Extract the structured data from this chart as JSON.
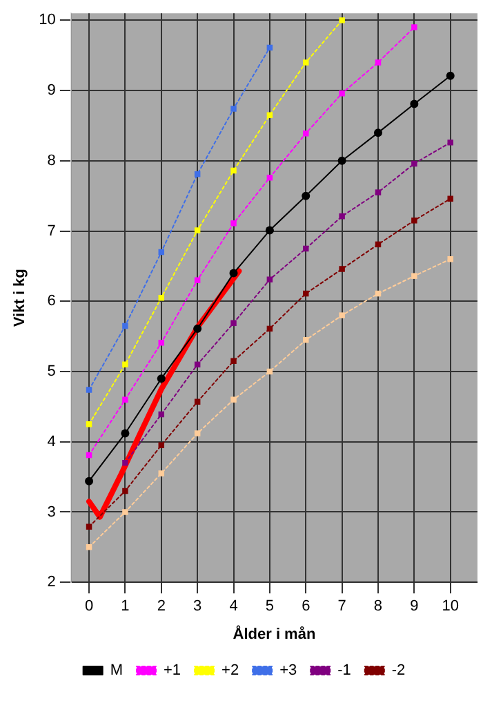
{
  "chart_data": {
    "type": "line",
    "xlabel": "Ålder i mån",
    "ylabel": "Vikt i kg",
    "xlim": [
      -0.5,
      10.75
    ],
    "xticks": [
      0,
      1,
      2,
      3,
      4,
      5,
      6,
      7,
      8,
      9,
      10
    ],
    "ylim": [
      2,
      10.1
    ],
    "yticks": [
      2,
      3,
      4,
      5,
      6,
      7,
      8,
      9,
      10
    ],
    "grid": true,
    "legend": "bottom",
    "x": [
      0,
      1,
      2,
      3,
      4,
      5,
      6,
      7,
      8,
      9,
      10
    ],
    "series": [
      {
        "name": "M",
        "color": "#000000",
        "marker": "circle",
        "line_style": "solid",
        "values": [
          3.44,
          4.12,
          4.9,
          5.61,
          6.4,
          7.01,
          7.5,
          8.0,
          8.4,
          8.81,
          9.21
        ]
      },
      {
        "name": "+1",
        "color": "#ff00ff",
        "marker": "square",
        "line_style": "dotted",
        "values": [
          3.81,
          4.6,
          5.41,
          6.3,
          7.11,
          7.76,
          8.39,
          8.96,
          9.4,
          9.9,
          null
        ]
      },
      {
        "name": "+2",
        "color": "#ffff00",
        "marker": "square",
        "line_style": "dotted",
        "values": [
          4.25,
          5.1,
          6.05,
          7.01,
          7.86,
          8.65,
          9.4,
          10.0,
          null,
          null,
          null
        ]
      },
      {
        "name": "+3",
        "color": "#3f6fe8",
        "marker": "square",
        "line_style": "dotted",
        "values": [
          4.74,
          5.65,
          6.7,
          7.81,
          8.74,
          9.61,
          null,
          null,
          null,
          null,
          null
        ]
      },
      {
        "name": "-1",
        "color": "#800080",
        "marker": "square",
        "line_style": "dotted",
        "values": [
          null,
          3.7,
          4.39,
          5.1,
          5.69,
          6.31,
          6.75,
          7.21,
          7.55,
          7.96,
          8.26
        ]
      },
      {
        "name": "-2",
        "color": "#800000",
        "marker": "square",
        "line_style": "dotted",
        "values": [
          2.79,
          3.3,
          3.95,
          4.57,
          5.15,
          5.61,
          6.11,
          6.46,
          6.81,
          7.15,
          7.46
        ]
      },
      {
        "color": "#ffcc99",
        "marker": "square",
        "line_style": "dotted",
        "values": [
          2.5,
          3.0,
          3.55,
          4.12,
          4.6,
          5.0,
          5.45,
          5.8,
          6.11,
          6.36,
          6.6
        ]
      },
      {
        "color": "#ff0000",
        "marker": "none",
        "line_style": "solid",
        "x": [
          0,
          0.3,
          0.9,
          1.4,
          2,
          2.4,
          3,
          4.15
        ],
        "values": [
          3.15,
          2.93,
          3.55,
          4.1,
          4.75,
          5.1,
          5.63,
          6.43
        ]
      }
    ]
  }
}
